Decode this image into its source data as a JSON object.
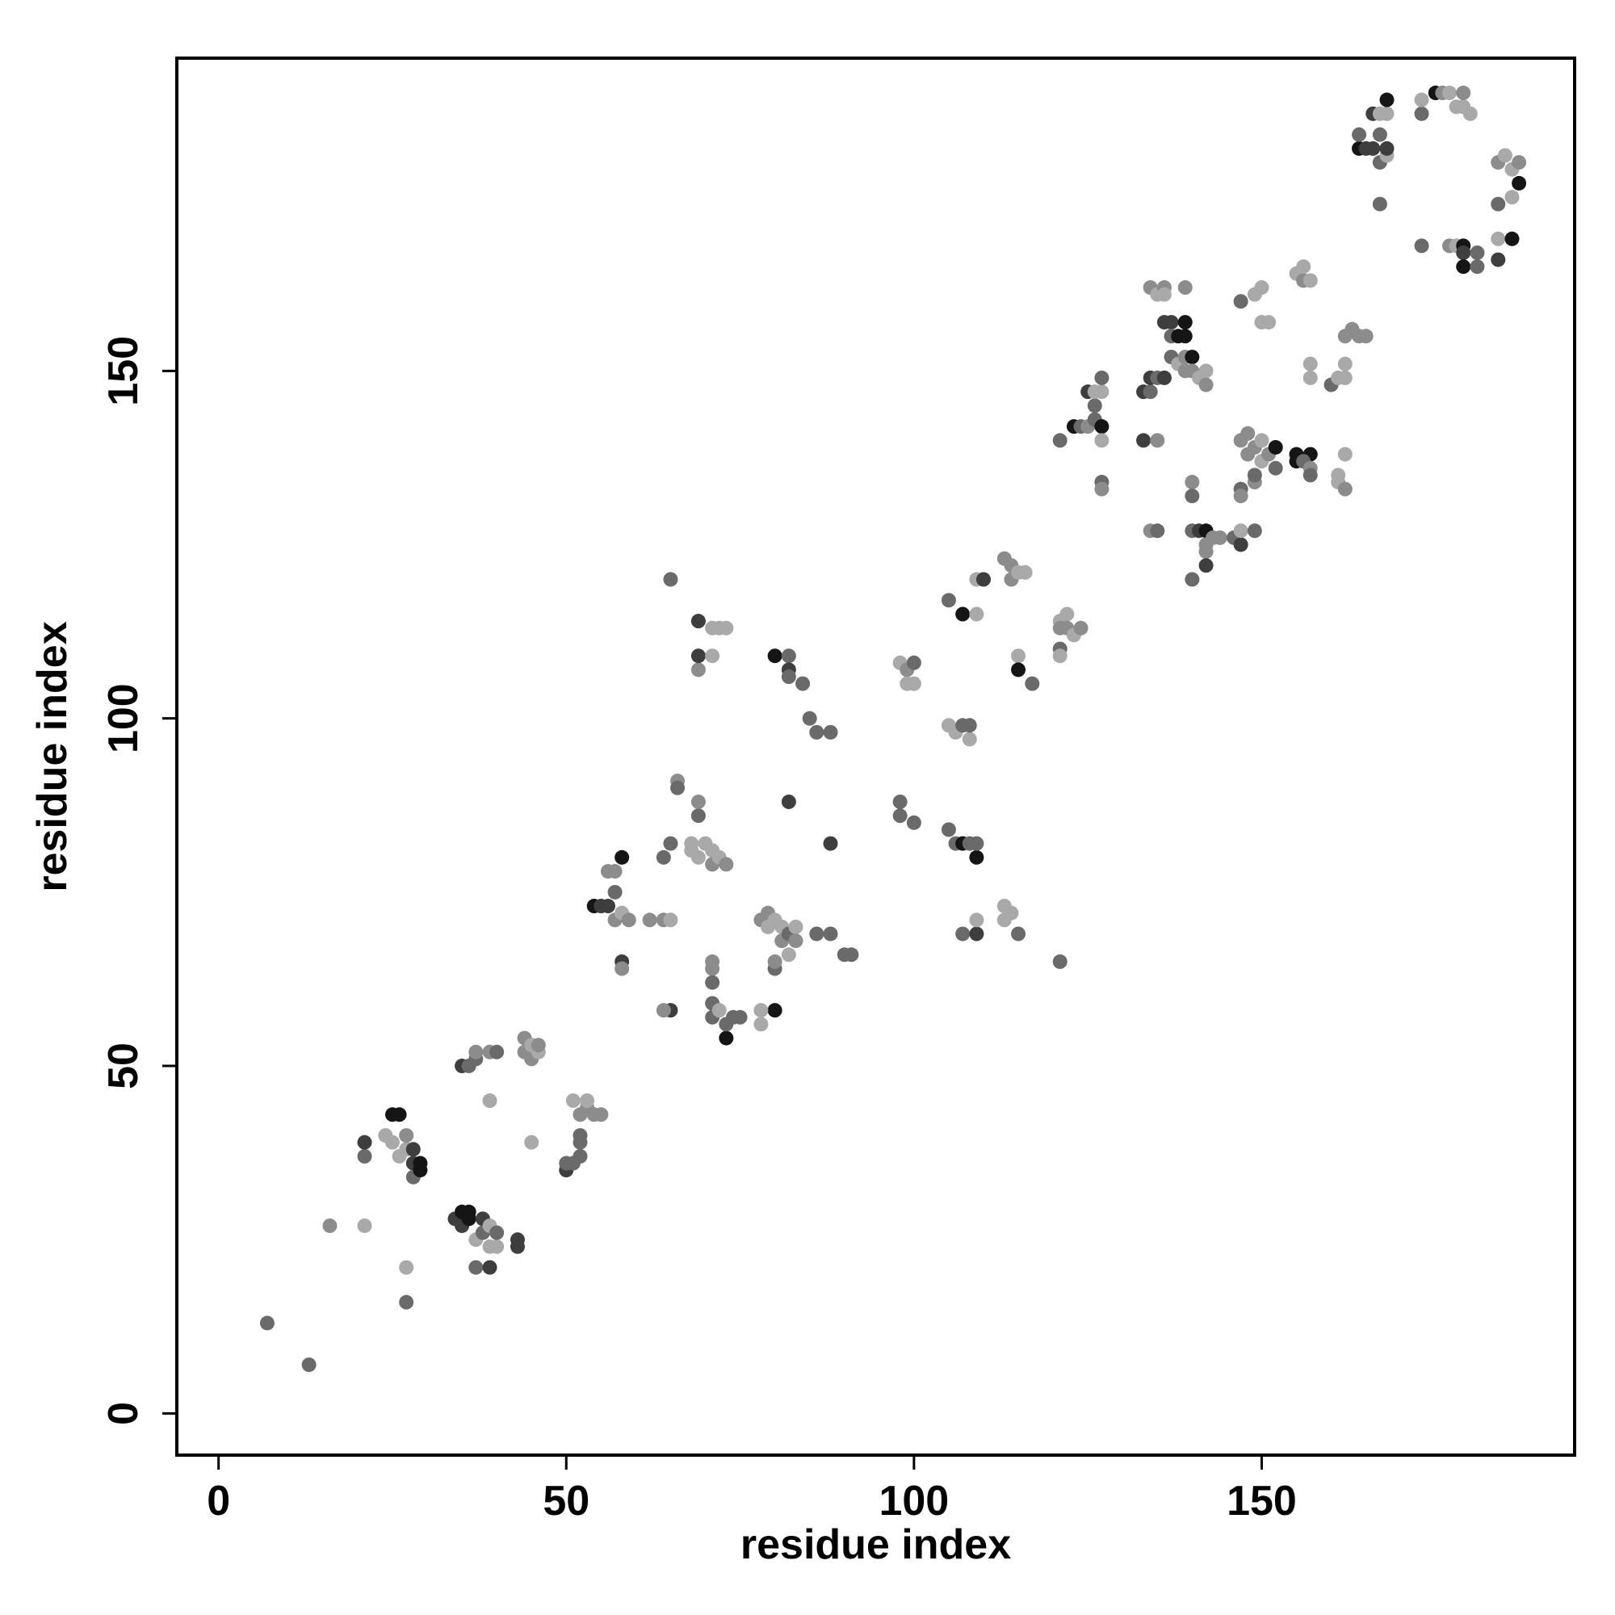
{
  "chart_data": {
    "type": "scatter",
    "title": "",
    "xlabel": "residue index",
    "ylabel": "residue index",
    "xlim": [
      -6,
      195
    ],
    "ylim": [
      -6,
      195
    ],
    "xticks": [
      0,
      50,
      100,
      150
    ],
    "yticks": [
      0,
      50,
      100,
      150
    ],
    "grid": false,
    "legend": "none",
    "colors": {
      "darkest": "#151515",
      "dark": "#3e3e3e",
      "mid": "#6a6a6a",
      "light": "#8c8c8c",
      "lightest": "#a9a9a9"
    },
    "points": [
      [
        7,
        13,
        "mid"
      ],
      [
        13,
        7,
        "mid"
      ],
      [
        16,
        27,
        "light"
      ],
      [
        21,
        27,
        "lightest"
      ],
      [
        21,
        37,
        "mid"
      ],
      [
        21,
        39,
        "dark"
      ],
      [
        24,
        40,
        "lightest"
      ],
      [
        25,
        39,
        "lightest"
      ],
      [
        25,
        43,
        "darkest"
      ],
      [
        26,
        43,
        "darkest"
      ],
      [
        26,
        37,
        "lightest"
      ],
      [
        27,
        38,
        "lightest"
      ],
      [
        27,
        40,
        "light"
      ],
      [
        27,
        16,
        "mid"
      ],
      [
        27,
        21,
        "lightest"
      ],
      [
        28,
        36,
        "dark"
      ],
      [
        28,
        38,
        "dark"
      ],
      [
        28,
        34,
        "mid"
      ],
      [
        29,
        36,
        "darkest"
      ],
      [
        29,
        35,
        "darkest"
      ],
      [
        34,
        28,
        "dark"
      ],
      [
        35,
        27,
        "dark"
      ],
      [
        35,
        29,
        "darkest"
      ],
      [
        36,
        28,
        "darkest"
      ],
      [
        36,
        29,
        "darkest"
      ],
      [
        37,
        25,
        "lightest"
      ],
      [
        37,
        21,
        "mid"
      ],
      [
        38,
        28,
        "dark"
      ],
      [
        38,
        26,
        "mid"
      ],
      [
        39,
        27,
        "lightest"
      ],
      [
        39,
        24,
        "lightest"
      ],
      [
        39,
        21,
        "dark"
      ],
      [
        40,
        24,
        "lightest"
      ],
      [
        40,
        26,
        "mid"
      ],
      [
        43,
        24,
        "dark"
      ],
      [
        43,
        25,
        "dark"
      ],
      [
        35,
        50,
        "dark"
      ],
      [
        36,
        50,
        "mid"
      ],
      [
        37,
        51,
        "mid"
      ],
      [
        37,
        52,
        "light"
      ],
      [
        39,
        52,
        "light"
      ],
      [
        40,
        52,
        "mid"
      ],
      [
        39,
        45,
        "lightest"
      ],
      [
        44,
        52,
        "light"
      ],
      [
        44,
        54,
        "light"
      ],
      [
        45,
        51,
        "light"
      ],
      [
        45,
        53,
        "lightest"
      ],
      [
        46,
        52,
        "lightest"
      ],
      [
        46,
        53,
        "light"
      ],
      [
        45,
        39,
        "lightest"
      ],
      [
        50,
        35,
        "dark"
      ],
      [
        50,
        36,
        "mid"
      ],
      [
        51,
        36,
        "mid"
      ],
      [
        52,
        37,
        "mid"
      ],
      [
        52,
        39,
        "mid"
      ],
      [
        52,
        40,
        "mid"
      ],
      [
        51,
        45,
        "lightest"
      ],
      [
        52,
        43,
        "light"
      ],
      [
        53,
        44,
        "light"
      ],
      [
        53,
        45,
        "lightest"
      ],
      [
        54,
        43,
        "light"
      ],
      [
        55,
        43,
        "light"
      ],
      [
        54,
        73,
        "darkest"
      ],
      [
        55,
        73,
        "dark"
      ],
      [
        56,
        73,
        "dark"
      ],
      [
        56,
        78,
        "light"
      ],
      [
        57,
        78,
        "light"
      ],
      [
        57,
        75,
        "mid"
      ],
      [
        57,
        71,
        "light"
      ],
      [
        58,
        72,
        "lightest"
      ],
      [
        58,
        80,
        "darkest"
      ],
      [
        58,
        65,
        "dark"
      ],
      [
        58,
        64,
        "light"
      ],
      [
        59,
        71,
        "light"
      ],
      [
        62,
        71,
        "light"
      ],
      [
        64,
        80,
        "mid"
      ],
      [
        64,
        71,
        "light"
      ],
      [
        65,
        71,
        "lightest"
      ],
      [
        65,
        82,
        "mid"
      ],
      [
        65,
        58,
        "dark"
      ],
      [
        64,
        58,
        "light"
      ],
      [
        65,
        120,
        "mid"
      ],
      [
        66,
        91,
        "light"
      ],
      [
        66,
        90,
        "mid"
      ],
      [
        68,
        82,
        "lightest"
      ],
      [
        68,
        81,
        "lightest"
      ],
      [
        69,
        80,
        "lightest"
      ],
      [
        69,
        86,
        "mid"
      ],
      [
        69,
        88,
        "light"
      ],
      [
        70,
        82,
        "lightest"
      ],
      [
        71,
        81,
        "lightest"
      ],
      [
        71,
        79,
        "light"
      ],
      [
        72,
        80,
        "lightest"
      ],
      [
        73,
        79,
        "light"
      ],
      [
        71,
        65,
        "light"
      ],
      [
        71,
        64,
        "light"
      ],
      [
        71,
        62,
        "mid"
      ],
      [
        71,
        59,
        "mid"
      ],
      [
        71,
        57,
        "mid"
      ],
      [
        72,
        58,
        "lightest"
      ],
      [
        73,
        54,
        "darkest"
      ],
      [
        73,
        56,
        "mid"
      ],
      [
        74,
        57,
        "mid"
      ],
      [
        75,
        57,
        "mid"
      ],
      [
        69,
        114,
        "dark"
      ],
      [
        69,
        107,
        "light"
      ],
      [
        69,
        109,
        "dark"
      ],
      [
        71,
        109,
        "lightest"
      ],
      [
        71,
        113,
        "lightest"
      ],
      [
        72,
        113,
        "lightest"
      ],
      [
        73,
        113,
        "lightest"
      ],
      [
        78,
        71,
        "light"
      ],
      [
        79,
        72,
        "light"
      ],
      [
        79,
        70,
        "lightest"
      ],
      [
        80,
        71,
        "lightest"
      ],
      [
        81,
        70,
        "lightest"
      ],
      [
        81,
        68,
        "light"
      ],
      [
        82,
        69,
        "mid"
      ],
      [
        82,
        66,
        "lightest"
      ],
      [
        83,
        70,
        "lightest"
      ],
      [
        83,
        68,
        "light"
      ],
      [
        80,
        64,
        "mid"
      ],
      [
        80,
        65,
        "light"
      ],
      [
        80,
        58,
        "darkest"
      ],
      [
        78,
        58,
        "lightest"
      ],
      [
        78,
        56,
        "lightest"
      ],
      [
        80,
        109,
        "darkest"
      ],
      [
        82,
        109,
        "mid"
      ],
      [
        82,
        107,
        "dark"
      ],
      [
        82,
        106,
        "mid"
      ],
      [
        84,
        105,
        "mid"
      ],
      [
        82,
        88,
        "dark"
      ],
      [
        85,
        100,
        "mid"
      ],
      [
        86,
        98,
        "mid"
      ],
      [
        88,
        98,
        "mid"
      ],
      [
        88,
        82,
        "dark"
      ],
      [
        86,
        69,
        "mid"
      ],
      [
        88,
        69,
        "mid"
      ],
      [
        90,
        66,
        "mid"
      ],
      [
        91,
        66,
        "mid"
      ],
      [
        98,
        108,
        "lightest"
      ],
      [
        99,
        107,
        "light"
      ],
      [
        99,
        105,
        "lightest"
      ],
      [
        100,
        105,
        "lightest"
      ],
      [
        100,
        108,
        "mid"
      ],
      [
        98,
        88,
        "mid"
      ],
      [
        98,
        86,
        "mid"
      ],
      [
        100,
        85,
        "mid"
      ],
      [
        105,
        99,
        "lightest"
      ],
      [
        106,
        98,
        "lightest"
      ],
      [
        107,
        99,
        "mid"
      ],
      [
        108,
        97,
        "lightest"
      ],
      [
        108,
        99,
        "mid"
      ],
      [
        105,
        84,
        "mid"
      ],
      [
        106,
        82,
        "mid"
      ],
      [
        107,
        82,
        "darkest"
      ],
      [
        108,
        82,
        "mid"
      ],
      [
        109,
        80,
        "darkest"
      ],
      [
        109,
        82,
        "mid"
      ],
      [
        105,
        117,
        "mid"
      ],
      [
        107,
        115,
        "darkest"
      ],
      [
        109,
        115,
        "lightest"
      ],
      [
        109,
        120,
        "lightest"
      ],
      [
        110,
        120,
        "dark"
      ],
      [
        107,
        69,
        "mid"
      ],
      [
        109,
        69,
        "dark"
      ],
      [
        109,
        71,
        "lightest"
      ],
      [
        113,
        123,
        "light"
      ],
      [
        114,
        122,
        "light"
      ],
      [
        114,
        120,
        "light"
      ],
      [
        115,
        121,
        "lightest"
      ],
      [
        116,
        121,
        "lightest"
      ],
      [
        115,
        109,
        "lightest"
      ],
      [
        115,
        107,
        "darkest"
      ],
      [
        117,
        105,
        "mid"
      ],
      [
        113,
        71,
        "lightest"
      ],
      [
        114,
        72,
        "lightest"
      ],
      [
        113,
        73,
        "lightest"
      ],
      [
        115,
        69,
        "mid"
      ],
      [
        121,
        65,
        "mid"
      ],
      [
        121,
        114,
        "lightest"
      ],
      [
        121,
        113,
        "light"
      ],
      [
        122,
        115,
        "lightest"
      ],
      [
        122,
        113,
        "light"
      ],
      [
        123,
        112,
        "lightest"
      ],
      [
        124,
        113,
        "light"
      ],
      [
        121,
        110,
        "mid"
      ],
      [
        121,
        109,
        "lightest"
      ],
      [
        121,
        140,
        "mid"
      ],
      [
        123,
        142,
        "darkest"
      ],
      [
        124,
        142,
        "mid"
      ],
      [
        125,
        142,
        "light"
      ],
      [
        125,
        147,
        "dark"
      ],
      [
        126,
        145,
        "mid"
      ],
      [
        126,
        143,
        "mid"
      ],
      [
        126,
        147,
        "lightest"
      ],
      [
        127,
        147,
        "lightest"
      ],
      [
        127,
        149,
        "mid"
      ],
      [
        127,
        142,
        "darkest"
      ],
      [
        127,
        140,
        "lightest"
      ],
      [
        127,
        134,
        "mid"
      ],
      [
        127,
        133,
        "light"
      ],
      [
        133,
        147,
        "dark"
      ],
      [
        134,
        147,
        "mid"
      ],
      [
        134,
        149,
        "dark"
      ],
      [
        135,
        149,
        "mid"
      ],
      [
        136,
        149,
        "dark"
      ],
      [
        133,
        140,
        "dark"
      ],
      [
        135,
        140,
        "light"
      ],
      [
        134,
        162,
        "light"
      ],
      [
        135,
        161,
        "lightest"
      ],
      [
        136,
        162,
        "light"
      ],
      [
        136,
        161,
        "lightest"
      ],
      [
        139,
        162,
        "light"
      ],
      [
        136,
        157,
        "dark"
      ],
      [
        137,
        157,
        "dark"
      ],
      [
        137,
        155,
        "mid"
      ],
      [
        138,
        155,
        "darkest"
      ],
      [
        139,
        155,
        "darkest"
      ],
      [
        139,
        157,
        "darkest"
      ],
      [
        137,
        152,
        "mid"
      ],
      [
        138,
        151,
        "lightest"
      ],
      [
        139,
        152,
        "light"
      ],
      [
        140,
        152,
        "darkest"
      ],
      [
        139,
        150,
        "light"
      ],
      [
        140,
        150,
        "light"
      ],
      [
        141,
        149,
        "lightest"
      ],
      [
        142,
        150,
        "lightest"
      ],
      [
        142,
        148,
        "light"
      ],
      [
        134,
        127,
        "light"
      ],
      [
        135,
        127,
        "mid"
      ],
      [
        140,
        134,
        "light"
      ],
      [
        140,
        132,
        "mid"
      ],
      [
        140,
        120,
        "mid"
      ],
      [
        140,
        127,
        "mid"
      ],
      [
        141,
        127,
        "dark"
      ],
      [
        142,
        127,
        "darkest"
      ],
      [
        142,
        125,
        "light"
      ],
      [
        142,
        124,
        "light"
      ],
      [
        142,
        122,
        "dark"
      ],
      [
        143,
        126,
        "light"
      ],
      [
        144,
        126,
        "light"
      ],
      [
        146,
        126,
        "mid"
      ],
      [
        147,
        125,
        "dark"
      ],
      [
        147,
        127,
        "lightest"
      ],
      [
        149,
        127,
        "mid"
      ],
      [
        147,
        140,
        "light"
      ],
      [
        148,
        141,
        "light"
      ],
      [
        148,
        138,
        "light"
      ],
      [
        149,
        139,
        "light"
      ],
      [
        150,
        140,
        "lightest"
      ],
      [
        150,
        137,
        "lightest"
      ],
      [
        151,
        138,
        "light"
      ],
      [
        152,
        139,
        "darkest"
      ],
      [
        152,
        136,
        "mid"
      ],
      [
        147,
        133,
        "mid"
      ],
      [
        147,
        132,
        "light"
      ],
      [
        149,
        134,
        "light"
      ],
      [
        149,
        135,
        "mid"
      ],
      [
        147,
        160,
        "mid"
      ],
      [
        149,
        161,
        "lightest"
      ],
      [
        150,
        162,
        "lightest"
      ],
      [
        150,
        157,
        "lightest"
      ],
      [
        151,
        157,
        "lightest"
      ],
      [
        155,
        164,
        "lightest"
      ],
      [
        156,
        163,
        "light"
      ],
      [
        156,
        165,
        "lightest"
      ],
      [
        157,
        163,
        "lightest"
      ],
      [
        155,
        138,
        "darkest"
      ],
      [
        155,
        137,
        "darkest"
      ],
      [
        157,
        138,
        "darkest"
      ],
      [
        156,
        137,
        "mid"
      ],
      [
        157,
        136,
        "light"
      ],
      [
        157,
        135,
        "mid"
      ],
      [
        157,
        151,
        "lightest"
      ],
      [
        157,
        149,
        "lightest"
      ],
      [
        160,
        148,
        "mid"
      ],
      [
        161,
        149,
        "lightest"
      ],
      [
        162,
        149,
        "lightest"
      ],
      [
        162,
        151,
        "lightest"
      ],
      [
        162,
        155,
        "light"
      ],
      [
        163,
        156,
        "light"
      ],
      [
        164,
        155,
        "light"
      ],
      [
        165,
        155,
        "light"
      ],
      [
        161,
        135,
        "lightest"
      ],
      [
        161,
        134,
        "lightest"
      ],
      [
        162,
        133,
        "light"
      ],
      [
        162,
        138,
        "lightest"
      ],
      [
        164,
        182,
        "darkest"
      ],
      [
        164,
        184,
        "mid"
      ],
      [
        165,
        182,
        "dark"
      ],
      [
        166,
        187,
        "dark"
      ],
      [
        166,
        182,
        "dark"
      ],
      [
        167,
        184,
        "mid"
      ],
      [
        167,
        180,
        "mid"
      ],
      [
        167,
        187,
        "lightest"
      ],
      [
        168,
        187,
        "lightest"
      ],
      [
        168,
        181,
        "lightest"
      ],
      [
        168,
        189,
        "darkest"
      ],
      [
        168,
        182,
        "dark"
      ],
      [
        167,
        174,
        "mid"
      ],
      [
        173,
        187,
        "mid"
      ],
      [
        173,
        189,
        "lightest"
      ],
      [
        175,
        190,
        "darkest"
      ],
      [
        176,
        190,
        "light"
      ],
      [
        177,
        190,
        "lightest"
      ],
      [
        178,
        188,
        "lightest"
      ],
      [
        179,
        188,
        "lightest"
      ],
      [
        179,
        190,
        "light"
      ],
      [
        180,
        187,
        "lightest"
      ],
      [
        173,
        168,
        "mid"
      ],
      [
        177,
        168,
        "light"
      ],
      [
        178,
        168,
        "lightest"
      ],
      [
        179,
        168,
        "darkest"
      ],
      [
        179,
        167,
        "dark"
      ],
      [
        179,
        165,
        "darkest"
      ],
      [
        181,
        165,
        "mid"
      ],
      [
        181,
        167,
        "mid"
      ],
      [
        184,
        166,
        "dark"
      ],
      [
        184,
        169,
        "lightest"
      ],
      [
        186,
        169,
        "darkest"
      ],
      [
        184,
        174,
        "mid"
      ],
      [
        184,
        180,
        "light"
      ],
      [
        185,
        181,
        "lightest"
      ],
      [
        186,
        179,
        "lightest"
      ],
      [
        186,
        175,
        "lightest"
      ],
      [
        187,
        177,
        "darkest"
      ],
      [
        187,
        180,
        "light"
      ]
    ]
  }
}
